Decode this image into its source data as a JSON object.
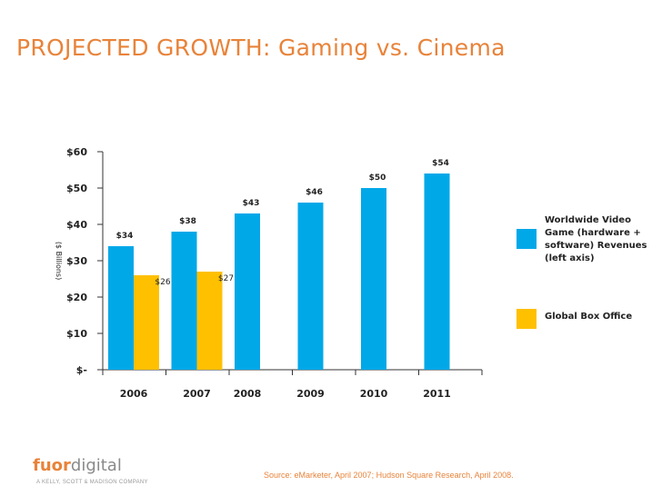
{
  "title": "PROJECTED GROWTH: Gaming vs. Cinema",
  "colors": {
    "title": "#e8833a",
    "gaming": "#00a8e8",
    "cinema": "#ffc000",
    "source": "#e8833a"
  },
  "chart_data": {
    "type": "bar",
    "categories": [
      "2006",
      "2007",
      "2008",
      "2009",
      "2010",
      "2011"
    ],
    "series": [
      {
        "name": "Worldwide Video Game (hardware + software) Revenues (left axis)",
        "values": [
          34,
          38,
          43,
          46,
          50,
          54
        ],
        "labels": [
          "$34",
          "$38",
          "$43",
          "$46",
          "$50",
          "$54"
        ],
        "color": "#00a8e8"
      },
      {
        "name": "Global Box Office",
        "values": [
          26,
          27,
          null,
          null,
          null,
          null
        ],
        "labels": [
          "$26",
          "$27",
          "",
          "",
          "",
          ""
        ],
        "color": "#ffc000"
      }
    ],
    "yticks": [
      0,
      10,
      20,
      30,
      40,
      50,
      60
    ],
    "ytick_labels": [
      "$-",
      "$10",
      "$20",
      "$30",
      "$40",
      "$50",
      "$60"
    ],
    "ylim": [
      0,
      60
    ],
    "ylabel": "($ Billions)",
    "grid": false,
    "legend": "right"
  },
  "footer": {
    "logo_primary": "fuor",
    "logo_secondary": "digital",
    "tagline": "A KELLY, SCOTT & MADISON COMPANY",
    "source": "Source:  eMarketer, April 2007; Hudson Square Research, April 2008."
  }
}
